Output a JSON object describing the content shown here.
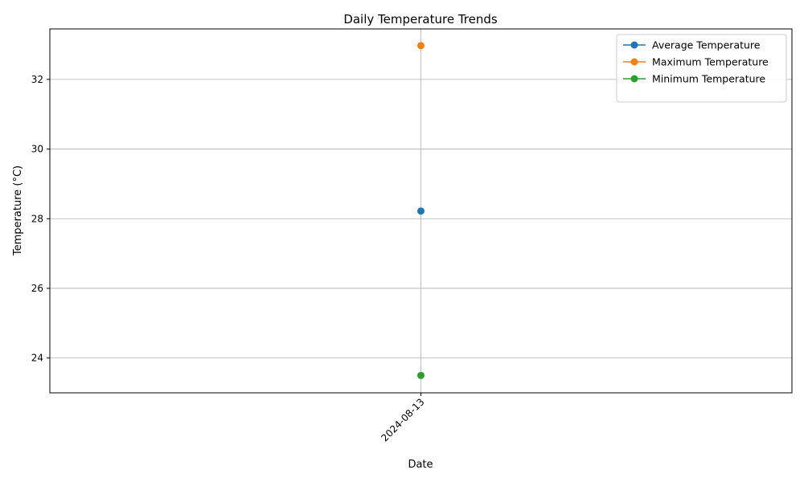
{
  "chart_data": {
    "type": "line",
    "title": "Daily Temperature Trends",
    "xlabel": "Date",
    "ylabel": "Temperature (°C)",
    "categories": [
      "2024-08-13"
    ],
    "ylim": [
      23.0,
      33.45
    ],
    "yticks": [
      24,
      26,
      28,
      30,
      32
    ],
    "grid": true,
    "legend_position": "top-right",
    "series": [
      {
        "name": "Average Temperature",
        "color": "#1f77b4",
        "values": [
          28.22
        ]
      },
      {
        "name": "Maximum Temperature",
        "color": "#ff7f0e",
        "values": [
          32.97
        ]
      },
      {
        "name": "Minimum Temperature",
        "color": "#2ca02c",
        "values": [
          23.5
        ]
      }
    ]
  }
}
